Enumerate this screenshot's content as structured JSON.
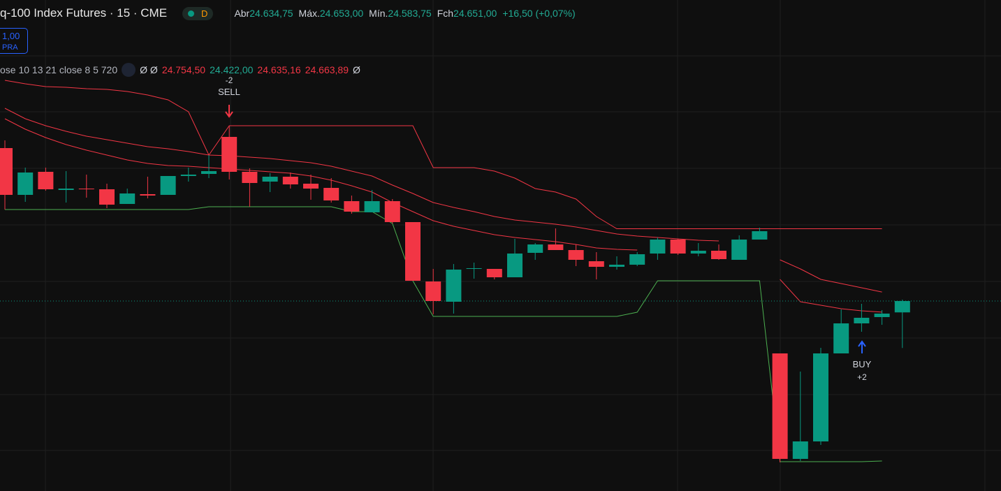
{
  "ui": {
    "title": "q-100 Index Futures · 15 · CME",
    "badge": "D",
    "open_label": "Abr",
    "open": "24.634,75",
    "high_label": "Máx.",
    "high": "24.653,00",
    "low_label": "Mín.",
    "low": "24.583,75",
    "close_label": "Fch",
    "close": "24.651,00",
    "change": "+16,50 (+0,07%)",
    "order_price": "1,00",
    "order_side": "PRA",
    "indicator": "ose 10 13 21 close 8 5 720",
    "indicator_flags": "Ø Ø",
    "indicator_values": [
      "24.754,50",
      "24.422,00",
      "24.635,16",
      "24.663,89"
    ],
    "indicator_end": "Ø",
    "sell_qty": "-2",
    "sell": "SELL",
    "buy": "BUY",
    "buy_qty": "+2"
  },
  "chart_data": {
    "type": "candlestick",
    "ylim": [
      24379,
      25082
    ],
    "up_color": "#089981",
    "down_color": "#f23645",
    "open": [
      24870,
      24803,
      24836,
      24810,
      24812,
      24811,
      24790,
      24804,
      24803,
      24830,
      24833,
      24886,
      24836,
      24822,
      24829,
      24819,
      24813,
      24794,
      24778,
      24794,
      24764,
      24679,
      24650,
      24697,
      24697,
      24685,
      24720,
      24732,
      24724,
      24708,
      24700,
      24703,
      24719,
      24739,
      24719,
      24723,
      24710,
      24739,
      24576,
      24425,
      24450,
      24576,
      24619,
      24628,
      24634.75
    ],
    "high": [
      24881,
      24842,
      24842,
      24837,
      24832,
      24819,
      24812,
      24829,
      24830,
      24842,
      24860,
      24902,
      24841,
      24834,
      24835,
      24832,
      24827,
      24802,
      24810,
      24797,
      24764,
      24697,
      24704,
      24706,
      24697,
      24740,
      24734,
      24755,
      24732,
      24721,
      24715,
      24721,
      24742,
      24740,
      24734,
      24732,
      24745,
      24756,
      24576,
      24550,
      24584,
      24639,
      24647,
      24638,
      24653
    ],
    "low": [
      24782,
      24793,
      24809,
      24792,
      24799,
      24784,
      24790,
      24798,
      24803,
      24822,
      24827,
      24825,
      24786,
      24807,
      24812,
      24796,
      24792,
      24776,
      24778,
      24762,
      24680,
      24632,
      24633,
      24683,
      24682,
      24685,
      24710,
      24724,
      24701,
      24682,
      24696,
      24701,
      24710,
      24717,
      24715,
      24710,
      24710,
      24739,
      24420,
      24422,
      24445,
      24576,
      24607,
      24617,
      24583.75
    ],
    "close": [
      24803,
      24835,
      24811,
      24812,
      24811,
      24789,
      24805,
      24802,
      24830,
      24832,
      24837,
      24836,
      24820,
      24829,
      24818,
      24812,
      24795,
      24779,
      24794,
      24764,
      24680,
      24651,
      24696,
      24698,
      24685,
      24719,
      24732,
      24724,
      24710,
      24700,
      24703,
      24718,
      24739,
      24719,
      24723,
      24711,
      24739,
      24751,
      24425,
      24450,
      24576,
      24619,
      24627,
      24633,
      24651
    ],
    "overlays": [
      {
        "color": "#f23645",
        "values": [
          24967,
          24962,
          24958,
          24957,
          24955,
          24954,
          24951,
          24946,
          24939,
          24922,
          24860,
          24902,
          24902,
          24902,
          24902,
          24902,
          24902,
          24902,
          24902,
          24902,
          24902,
          24842,
          24842,
          24842,
          24837,
          24827,
          24812,
          24807,
          24797,
          24772,
          24754.5,
          24754.5,
          24754.5,
          24754.5,
          24754.5,
          24754.5,
          24754.5,
          24754.5,
          24754.5,
          24754.5,
          24754.5,
          24754.5,
          24754.5,
          24754.5,
          null
        ]
      },
      {
        "color": "#f23645",
        "values": [
          24927,
          24912,
          24902,
          24894,
          24887,
          24882,
          24877,
          24872,
          24869,
          24865,
          24860,
          24859,
          24857,
          24855,
          24852,
          24849,
          24844,
          24837,
          24830,
          24817,
          24805,
          24792,
          24785,
          24779,
          24772,
          24767,
          24764,
          24761,
          24757,
          24752,
          24747,
          24744,
          24742,
          24740,
          24738,
          24737,
          null,
          null,
          24710,
          24697,
          24682,
          24676,
          24670,
          24663.89,
          null
        ]
      },
      {
        "color": "#f23645",
        "values": [
          24912,
          24897,
          24885,
          24875,
          24867,
          24860,
          24853,
          24848,
          24845,
          24844,
          24842,
          24840,
          24838,
          24836,
          24834,
          24830,
          24824,
          24816,
          24807,
          24792,
          24779,
          24766,
          24758,
          24752,
          24746,
          24742,
          24739,
          24736,
          24732,
          24727,
          24725,
          24724,
          null,
          null,
          null,
          null,
          null,
          null,
          24682,
          24650,
          24645,
          24640,
          24637,
          24635.16,
          null
        ]
      },
      {
        "color": "#4caf50",
        "values": [
          24782,
          24782,
          24782,
          24782,
          24782,
          24782,
          24782,
          24782,
          24782,
          24782,
          24786,
          24786,
          24786,
          24786,
          24786,
          24786,
          24786,
          24779,
          24779,
          24762,
          24680,
          24629,
          24629,
          24629,
          24629,
          24629,
          24629,
          24629,
          24629,
          24629,
          24629,
          24635,
          24680,
          24680,
          24680,
          24680,
          24680,
          24680,
          24421,
          24421,
          24421,
          24421,
          24421,
          24422,
          null
        ]
      }
    ]
  }
}
